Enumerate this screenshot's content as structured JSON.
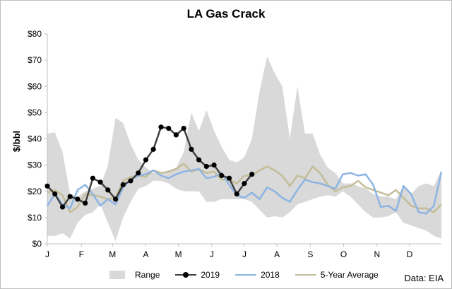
{
  "chart_data": {
    "type": "line",
    "title": "LA Gas Crack",
    "ylabel": "$/bbl",
    "ylim": [
      0,
      80
    ],
    "yticks": [
      0,
      10,
      20,
      30,
      40,
      50,
      60,
      70,
      80
    ],
    "ytick_labels": [
      "$0",
      "$10",
      "$20",
      "$30",
      "$40",
      "$50",
      "$60",
      "$70",
      "$80"
    ],
    "xlim": [
      1,
      53
    ],
    "month_labels": [
      "J",
      "F",
      "M",
      "A",
      "M",
      "J",
      "J",
      "A",
      "S",
      "O",
      "N",
      "D"
    ],
    "month_weeks": [
      1,
      5.5,
      9.6,
      14,
      18.3,
      22.7,
      27,
      31.3,
      35.7,
      40.1,
      44.5,
      48.8
    ],
    "range": {
      "name": "Range",
      "color": "#d9d9d9",
      "weeks": [
        1,
        2,
        3,
        4,
        5,
        6,
        7,
        8,
        9,
        10,
        11,
        12,
        13,
        14,
        15,
        16,
        17,
        18,
        19,
        20,
        21,
        22,
        23,
        24,
        25,
        26,
        27,
        28,
        29,
        30,
        31,
        32,
        33,
        34,
        35,
        36,
        37,
        38,
        39,
        40,
        41,
        42,
        43,
        44,
        45,
        46,
        47,
        48,
        49,
        50,
        51,
        52,
        53
      ],
      "upper": [
        42,
        42.5,
        35,
        19,
        18,
        20,
        21,
        22,
        30,
        48,
        46,
        38,
        32,
        29,
        27,
        27,
        28,
        29,
        35,
        50,
        43,
        51,
        43,
        37,
        32,
        31,
        33,
        40,
        58,
        71.5,
        65,
        60,
        40,
        60,
        42,
        42,
        34,
        29,
        27,
        23,
        23,
        22,
        21,
        19,
        18,
        18,
        17,
        22,
        19,
        22,
        23,
        22,
        28
      ],
      "lower": [
        3,
        3,
        4,
        2,
        8,
        11,
        12,
        15,
        8,
        1,
        10,
        16,
        21,
        22,
        24,
        24,
        23,
        21,
        20,
        20,
        20,
        16,
        16,
        17,
        17,
        17,
        17,
        16,
        13,
        10,
        10.5,
        10,
        12,
        15,
        16,
        17,
        18,
        18.5,
        18,
        20,
        18,
        15,
        12,
        10,
        10,
        10.5,
        12,
        8,
        7,
        6,
        5,
        3,
        2
      ]
    },
    "series": [
      {
        "name": "2019",
        "color": "#404040",
        "marker": "circle",
        "weeks": [
          1,
          2,
          3,
          4,
          5,
          6,
          7,
          8,
          9,
          10,
          11,
          12,
          13,
          14,
          15,
          16,
          17,
          18,
          19,
          20,
          21,
          22,
          23,
          24,
          25,
          26,
          27,
          28,
          29
        ],
        "values": [
          22,
          19,
          14,
          18,
          17,
          15.5,
          25,
          23.5,
          20.5,
          17,
          22.5,
          24,
          27,
          32,
          36,
          44.5,
          44,
          41.5,
          44,
          36,
          32,
          29.5,
          30,
          26,
          25,
          19,
          23,
          26.5,
          null
        ]
      },
      {
        "name": "2018",
        "color": "#8db4e2",
        "weeks": [
          1,
          2,
          3,
          4,
          5,
          6,
          7,
          8,
          9,
          10,
          11,
          12,
          13,
          14,
          15,
          16,
          17,
          18,
          19,
          20,
          21,
          22,
          23,
          24,
          25,
          26,
          27,
          28,
          29,
          30,
          31,
          32,
          33,
          34,
          35,
          36,
          37,
          38,
          39,
          40,
          41,
          42,
          43,
          44,
          45,
          46,
          47,
          48,
          49,
          50,
          51,
          52,
          53
        ],
        "values": [
          14.5,
          19,
          15,
          13.5,
          20.5,
          22.5,
          19,
          14.5,
          17,
          15,
          21.5,
          24.5,
          26,
          26.5,
          28,
          26,
          25,
          26.5,
          27.5,
          28,
          28.5,
          25,
          25.5,
          27,
          22.5,
          18.5,
          17.5,
          19.5,
          17,
          21.5,
          20,
          17.5,
          16,
          20.5,
          24.5,
          23.5,
          23,
          22,
          21,
          26.5,
          27,
          26,
          26.5,
          22.5,
          14,
          14.5,
          12.5,
          22,
          19,
          12,
          11.5,
          14.5,
          27.5
        ]
      },
      {
        "name": "5-Year Average",
        "color": "#c4bd97",
        "weeks": [
          1,
          2,
          3,
          4,
          5,
          6,
          7,
          8,
          9,
          10,
          11,
          12,
          13,
          14,
          15,
          16,
          17,
          18,
          19,
          20,
          21,
          22,
          23,
          24,
          25,
          26,
          27,
          28,
          29,
          30,
          31,
          32,
          33,
          34,
          35,
          36,
          37,
          38,
          39,
          40,
          41,
          42,
          43,
          44,
          45,
          46,
          47,
          48,
          49,
          50,
          51,
          52,
          53
        ],
        "values": [
          19.5,
          20.5,
          18.5,
          12,
          14,
          19,
          18.5,
          18,
          17,
          17.5,
          24,
          25.5,
          26,
          25.5,
          28,
          27,
          27.5,
          28.5,
          30.5,
          27.5,
          28.5,
          27,
          27.5,
          24.5,
          24.5,
          23,
          26,
          26,
          28,
          29.5,
          28,
          26,
          22,
          26,
          25,
          29.5,
          27,
          22.5,
          20,
          21.5,
          22,
          24,
          21.5,
          20.5,
          19.5,
          18.5,
          20.5,
          17.5,
          14.5,
          13.5,
          13.5,
          12,
          15
        ]
      }
    ],
    "legend": [
      "Range",
      "2019",
      "2018",
      "5-Year Average"
    ],
    "legend_position": "bottom",
    "grid": false,
    "annotation": "Data: EIA"
  }
}
